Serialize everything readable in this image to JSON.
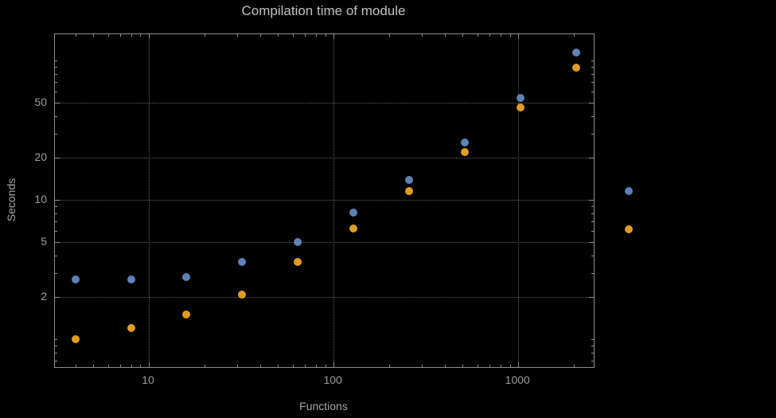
{
  "chart_data": {
    "type": "scatter",
    "title": "Compilation time of module",
    "xlabel": "Functions",
    "ylabel": "Seconds",
    "xscale": "log",
    "yscale": "log",
    "xlim": [
      3.1,
      2560
    ],
    "ylim": [
      0.63,
      155
    ],
    "grid": true,
    "x_ticks": [
      10,
      100,
      1000
    ],
    "y_ticks": [
      2,
      5,
      10,
      20,
      50
    ],
    "x": [
      4,
      8,
      16,
      32,
      64,
      128,
      256,
      512,
      1024,
      2048
    ],
    "series": [
      {
        "name": "blue-series",
        "color": "#5e81b5",
        "values": [
          2.7,
          2.7,
          2.8,
          3.6,
          5.0,
          8.1,
          14,
          26,
          54,
          115
        ]
      },
      {
        "name": "orange-series",
        "color": "#e09c24",
        "values": [
          1.0,
          1.2,
          1.5,
          2.1,
          3.6,
          6.2,
          11.6,
          22,
          46,
          89
        ]
      }
    ]
  },
  "legend": {
    "position": "right-of-plot",
    "markers": [
      {
        "name": "blue-series-marker",
        "color": "#5e81b5"
      },
      {
        "name": "orange-series-marker",
        "color": "#e09c24"
      }
    ]
  },
  "colors": {
    "background": "#000000",
    "frame": "#8e8e8e",
    "gridline": "#5f5f5f",
    "title_text": "#c0c0c0",
    "axis_label_text": "#a5a5a5",
    "tick_label_text": "#9c9c9c"
  }
}
